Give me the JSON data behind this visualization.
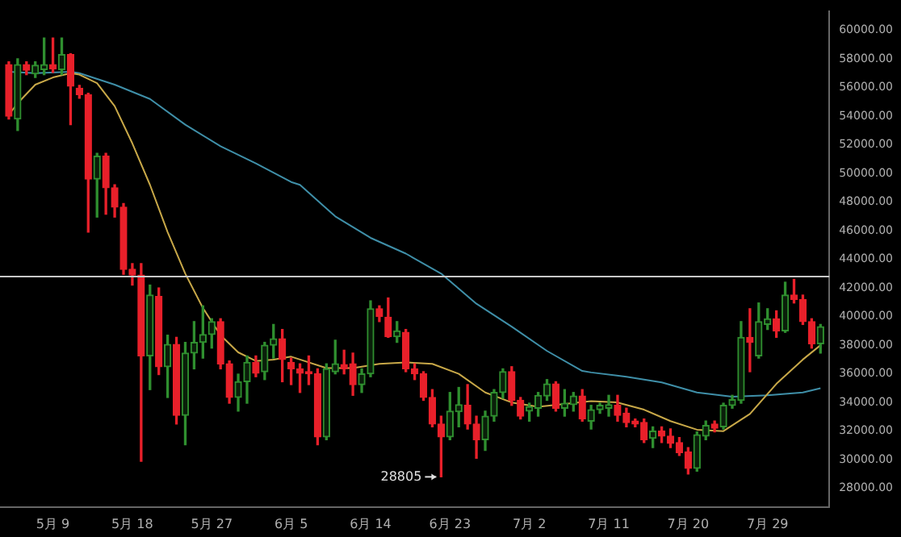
{
  "chart_data": {
    "type": "candlestick",
    "x": [
      "--05-04",
      "--05-05",
      "--05-06",
      "--05-07",
      "--05-08",
      "--05-09",
      "--05-10",
      "--05-11",
      "--05-12",
      "--05-13",
      "--05-14",
      "--05-15",
      "--05-16",
      "--05-17",
      "--05-18",
      "--05-19",
      "--05-20",
      "--05-21",
      "--05-22",
      "--05-23",
      "--05-24",
      "--05-25",
      "--05-26",
      "--05-27",
      "--05-28",
      "--05-29",
      "--05-30",
      "--05-31",
      "--06-01",
      "--06-02",
      "--06-03",
      "--06-04",
      "--06-05",
      "--06-06",
      "--06-07",
      "--06-08",
      "--06-09",
      "--06-10",
      "--06-11",
      "--06-12",
      "--06-13",
      "--06-14",
      "--06-15",
      "--06-16",
      "--06-17",
      "--06-18",
      "--06-19",
      "--06-20",
      "--06-21",
      "--06-22",
      "--06-23",
      "--06-24",
      "--06-25",
      "--06-26",
      "--06-27",
      "--06-28",
      "--06-29",
      "--06-30",
      "--07-01",
      "--07-02",
      "--07-03",
      "--07-04",
      "--07-05",
      "--07-06",
      "--07-07",
      "--07-08",
      "--07-09",
      "--07-10",
      "--07-11",
      "--07-12",
      "--07-13",
      "--07-14",
      "--07-15",
      "--07-16",
      "--07-17",
      "--07-18",
      "--07-19",
      "--07-20",
      "--07-21",
      "--07-22",
      "--07-23",
      "--07-24",
      "--07-25",
      "--07-26",
      "--07-27",
      "--07-28",
      "--07-29",
      "--07-30",
      "--07-31",
      "--08-01",
      "--08-02",
      "--08-03",
      "--08-04"
    ],
    "ohlc": [
      [
        57600,
        57800,
        53800,
        54000
      ],
      [
        53800,
        58000,
        53000,
        57600
      ],
      [
        57600,
        57800,
        56900,
        57200
      ],
      [
        56950,
        57800,
        56700,
        57550
      ],
      [
        57250,
        59450,
        56900,
        57600
      ],
      [
        57600,
        59450,
        57050,
        57300
      ],
      [
        57250,
        59450,
        56900,
        58300
      ],
      [
        58300,
        58350,
        53400,
        56100
      ],
      [
        55950,
        56150,
        55250,
        55500
      ],
      [
        55500,
        55600,
        45900,
        49600
      ],
      [
        49600,
        51400,
        46950,
        51200
      ],
      [
        51200,
        51400,
        47150,
        49000
      ],
      [
        49000,
        49200,
        46950,
        47650
      ],
      [
        47650,
        47900,
        42950,
        43300
      ],
      [
        43300,
        43700,
        42200,
        42900
      ],
      [
        42900,
        43700,
        29900,
        37250
      ],
      [
        37250,
        42200,
        34900,
        41500
      ],
      [
        41400,
        42000,
        35950,
        36500
      ],
      [
        36500,
        38700,
        34350,
        38050
      ],
      [
        38050,
        38550,
        32500,
        33100
      ],
      [
        33100,
        38200,
        31050,
        37450
      ],
      [
        37450,
        39650,
        36350,
        38200
      ],
      [
        38200,
        40750,
        37100,
        38750
      ],
      [
        38750,
        39850,
        37800,
        39650
      ],
      [
        39650,
        39850,
        36350,
        36700
      ],
      [
        36700,
        36900,
        33950,
        34350
      ],
      [
        34350,
        35980,
        33400,
        35450
      ],
      [
        35450,
        37250,
        33950,
        36800
      ],
      [
        36800,
        37250,
        35800,
        36050
      ],
      [
        36150,
        38200,
        35600,
        38000
      ],
      [
        38000,
        39450,
        37100,
        38450
      ],
      [
        38450,
        39100,
        35450,
        37000
      ],
      [
        36800,
        37100,
        35250,
        36350
      ],
      [
        36350,
        36700,
        34700,
        36050
      ],
      [
        36150,
        37250,
        35250,
        36000
      ],
      [
        36000,
        36350,
        31050,
        31600
      ],
      [
        31600,
        36700,
        31400,
        36350
      ],
      [
        36150,
        38350,
        36000,
        36700
      ],
      [
        36650,
        37650,
        36000,
        36350
      ],
      [
        36700,
        37450,
        34500,
        35250
      ],
      [
        35250,
        36350,
        34700,
        36000
      ],
      [
        36000,
        41100,
        35800,
        40550
      ],
      [
        40550,
        40750,
        39650,
        40000
      ],
      [
        39950,
        41300,
        38550,
        38600
      ],
      [
        38600,
        39650,
        38200,
        39000
      ],
      [
        38900,
        39100,
        36150,
        36350
      ],
      [
        36350,
        36700,
        35600,
        36000
      ],
      [
        36000,
        36150,
        34150,
        34350
      ],
      [
        34350,
        34900,
        32300,
        32500
      ],
      [
        32500,
        33050,
        28805,
        31600
      ],
      [
        31600,
        34700,
        31400,
        33400
      ],
      [
        33350,
        35050,
        32300,
        33850
      ],
      [
        33800,
        35250,
        32150,
        32500
      ],
      [
        32500,
        33050,
        30100,
        31400
      ],
      [
        31400,
        33400,
        30650,
        33050
      ],
      [
        33050,
        34900,
        32700,
        34700
      ],
      [
        34700,
        36350,
        34300,
        36150
      ],
      [
        36150,
        36500,
        33800,
        34150
      ],
      [
        34150,
        34350,
        32850,
        33050
      ],
      [
        33400,
        33950,
        32700,
        33700
      ],
      [
        33600,
        34700,
        33050,
        34500
      ],
      [
        34450,
        35600,
        34150,
        35300
      ],
      [
        35300,
        35450,
        33400,
        33600
      ],
      [
        33600,
        34900,
        33050,
        33950
      ],
      [
        33850,
        34700,
        33400,
        34450
      ],
      [
        34450,
        34900,
        32700,
        32850
      ],
      [
        32700,
        33800,
        32150,
        33500
      ],
      [
        33500,
        33950,
        33250,
        33800
      ],
      [
        33600,
        34500,
        33050,
        33850
      ],
      [
        33800,
        34500,
        32700,
        33100
      ],
      [
        33250,
        33600,
        32300,
        32600
      ],
      [
        32700,
        32850,
        32300,
        32500
      ],
      [
        32600,
        32850,
        31200,
        31400
      ],
      [
        31500,
        32300,
        30850,
        32000
      ],
      [
        32000,
        32300,
        31200,
        31650
      ],
      [
        31650,
        32150,
        30850,
        31150
      ],
      [
        31200,
        31550,
        30300,
        30500
      ],
      [
        30550,
        30850,
        29000,
        29400
      ],
      [
        29400,
        31950,
        29200,
        31750
      ],
      [
        31650,
        32700,
        31400,
        32400
      ],
      [
        32500,
        32700,
        31950,
        32200
      ],
      [
        32300,
        33950,
        32150,
        33800
      ],
      [
        33800,
        34500,
        33600,
        34200
      ],
      [
        34150,
        39650,
        33950,
        38550
      ],
      [
        38550,
        40550,
        36150,
        38200
      ],
      [
        37250,
        40950,
        37100,
        39650
      ],
      [
        39450,
        40550,
        39100,
        39850
      ],
      [
        39850,
        40400,
        38550,
        39000
      ],
      [
        39000,
        42400,
        38900,
        41500
      ],
      [
        41500,
        42600,
        40950,
        41200
      ],
      [
        41200,
        41500,
        39450,
        39650
      ],
      [
        39650,
        39850,
        37800,
        38100
      ],
      [
        38100,
        39450,
        37450,
        39300
      ]
    ],
    "colors": [
      "#e8202a",
      "#2f8f2f",
      "#e8202a",
      "#2f8f2f",
      "#2f8f2f",
      "#e8202a",
      "#2f8f2f",
      "#e8202a",
      "#e8202a",
      "#e8202a",
      "#2f8f2f",
      "#e8202a",
      "#e8202a",
      "#e8202a",
      "#e8202a",
      "#e8202a",
      "#2f8f2f",
      "#e8202a",
      "#2f8f2f",
      "#e8202a",
      "#2f8f2f",
      "#2f8f2f",
      "#2f8f2f",
      "#2f8f2f",
      "#e8202a",
      "#e8202a",
      "#2f8f2f",
      "#2f8f2f",
      "#e8202a",
      "#2f8f2f",
      "#2f8f2f",
      "#e8202a",
      "#e8202a",
      "#e8202a",
      "#e8202a",
      "#e8202a",
      "#2f8f2f",
      "#2f8f2f",
      "#e8202a",
      "#e8202a",
      "#2f8f2f",
      "#2f8f2f",
      "#e8202a",
      "#e8202a",
      "#2f8f2f",
      "#e8202a",
      "#e8202a",
      "#e8202a",
      "#e8202a",
      "#e8202a",
      "#2f8f2f",
      "#2f8f2f",
      "#e8202a",
      "#e8202a",
      "#2f8f2f",
      "#2f8f2f",
      "#2f8f2f",
      "#e8202a",
      "#e8202a",
      "#2f8f2f",
      "#2f8f2f",
      "#2f8f2f",
      "#e8202a",
      "#2f8f2f",
      "#2f8f2f",
      "#e8202a",
      "#2f8f2f",
      "#2f8f2f",
      "#2f8f2f",
      "#e8202a",
      "#e8202a",
      "#e8202a",
      "#e8202a",
      "#2f8f2f",
      "#e8202a",
      "#e8202a",
      "#e8202a",
      "#e8202a",
      "#2f8f2f",
      "#2f8f2f",
      "#e8202a",
      "#2f8f2f",
      "#2f8f2f",
      "#2f8f2f",
      "#e8202a",
      "#2f8f2f",
      "#2f8f2f",
      "#e8202a",
      "#2f8f2f",
      "#e8202a",
      "#e8202a",
      "#e8202a",
      "#2f8f2f"
    ],
    "series": [
      {
        "type": "line",
        "color": "#c8a848",
        "x": [
          "--05-04",
          "--05-05",
          "--05-07",
          "--05-09",
          "--05-11",
          "--05-12",
          "--05-14",
          "--05-16",
          "--05-18",
          "--05-20",
          "--05-22",
          "--05-24",
          "--05-26",
          "--05-28",
          "--05-30",
          "--06-01",
          "--06-03",
          "--06-05",
          "--06-06",
          "--06-09",
          "--06-12",
          "--06-15",
          "--06-18",
          "--06-21",
          "--06-24",
          "--06-27",
          "--06-30",
          "--07-03",
          "--07-06",
          "--07-09",
          "--07-12",
          "--07-15",
          "--07-18",
          "--07-21",
          "--07-24",
          "--07-27",
          "--07-30",
          "--08-02",
          "--08-04"
        ],
        "values": [
          54100,
          54900,
          56200,
          56700,
          57000,
          56900,
          56300,
          54700,
          52100,
          49200,
          45900,
          43000,
          40600,
          38700,
          37500,
          36900,
          37000,
          37200,
          37000,
          36400,
          36400,
          36700,
          36800,
          36700,
          36000,
          34700,
          34000,
          33700,
          33900,
          34100,
          34000,
          33500,
          32700,
          32100,
          32000,
          33200,
          35300,
          37000,
          38000
        ]
      },
      {
        "type": "line",
        "color": "#3f8fa8",
        "x": [
          "--05-04",
          "--05-07",
          "--05-11",
          "--05-12",
          "--05-16",
          "--05-20",
          "--05-24",
          "--05-28",
          "--06-01",
          "--06-05",
          "--06-06",
          "--06-10",
          "--06-14",
          "--06-18",
          "--06-22",
          "--06-26",
          "--06-30",
          "--07-04",
          "--07-08",
          "--07-09",
          "--07-13",
          "--07-17",
          "--07-21",
          "--07-25",
          "--07-29",
          "--08-02",
          "--08-04"
        ],
        "values": [
          57100,
          57000,
          57100,
          57000,
          56200,
          55200,
          53400,
          51900,
          50700,
          49400,
          49200,
          47000,
          45500,
          44400,
          43000,
          40900,
          39300,
          37600,
          36200,
          36100,
          35800,
          35400,
          34700,
          34400,
          34500,
          34700,
          35000
        ]
      }
    ],
    "xlim": [
      "--05-03",
      "--08-05"
    ],
    "xticks": [
      {
        "value": "--05-09",
        "label": "5月 9"
      },
      {
        "value": "--05-18",
        "label": "5月 18"
      },
      {
        "value": "--05-27",
        "label": "5月 27"
      },
      {
        "value": "--06-05",
        "label": "6月 5"
      },
      {
        "value": "--06-14",
        "label": "6月 14"
      },
      {
        "value": "--06-23",
        "label": "6月 23"
      },
      {
        "value": "--07-02",
        "label": "7月 2"
      },
      {
        "value": "--07-11",
        "label": "7月 11"
      },
      {
        "value": "--07-20",
        "label": "7月 20"
      },
      {
        "value": "--07-29",
        "label": "7月 29"
      }
    ],
    "ylim": [
      26700,
      61300
    ],
    "yticks": [
      {
        "value": 28000,
        "label": "28000.00"
      },
      {
        "value": 30000,
        "label": "30000.00"
      },
      {
        "value": 32000,
        "label": "32000.00"
      },
      {
        "value": 34000,
        "label": "34000.00"
      },
      {
        "value": 36000,
        "label": "36000.00"
      },
      {
        "value": 38000,
        "label": "38000.00"
      },
      {
        "value": 40000,
        "label": "40000.00"
      },
      {
        "value": 42000,
        "label": "42000.00"
      },
      {
        "value": 44000,
        "label": "44000.00"
      },
      {
        "value": 46000,
        "label": "46000.00"
      },
      {
        "value": 48000,
        "label": "48000.00"
      },
      {
        "value": 50000,
        "label": "50000.00"
      },
      {
        "value": 52000,
        "label": "52000.00"
      },
      {
        "value": 54000,
        "label": "54000.00"
      },
      {
        "value": 56000,
        "label": "56000.00"
      },
      {
        "value": 58000,
        "label": "58000.00"
      },
      {
        "value": 60000,
        "label": "60000.00"
      }
    ],
    "ref_lines": [
      {
        "axis": "y",
        "value": 42800,
        "color": "#c8c8c8"
      }
    ],
    "annotations": [
      {
        "text": "28805",
        "x": "--06-22",
        "y": 28805
      }
    ],
    "grid": false,
    "legend": false,
    "marker": "none",
    "line_style": "solid"
  }
}
